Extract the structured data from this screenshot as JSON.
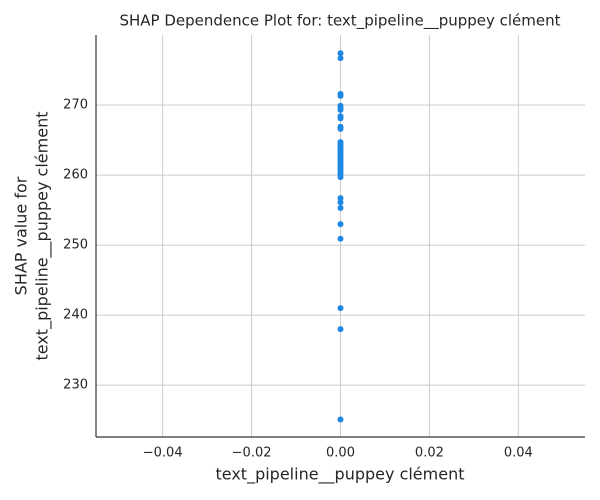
{
  "chart_data": {
    "type": "scatter",
    "title": "SHAP Dependence Plot for: text_pipeline__puppey clément",
    "xlabel": "text_pipeline__puppey clément",
    "ylabel": [
      "SHAP value for",
      "text_pipeline__puppey clément"
    ],
    "color": "#1e88e5",
    "grid": true,
    "xlim": [
      -0.055,
      0.055
    ],
    "ylim": [
      222.6,
      280
    ],
    "xticks": [
      {
        "value": -0.04,
        "label": "−0.04"
      },
      {
        "value": -0.02,
        "label": "−0.02"
      },
      {
        "value": 0,
        "label": "0.00"
      },
      {
        "value": 0.02,
        "label": "0.02"
      },
      {
        "value": 0.04,
        "label": "0.04"
      }
    ],
    "yticks": [
      230,
      240,
      250,
      260,
      270
    ],
    "x": [
      0,
      0,
      0,
      0,
      0,
      0,
      0,
      0,
      0,
      0,
      0,
      0,
      0,
      0,
      0,
      0,
      0,
      0,
      0,
      0,
      0,
      0,
      0,
      0,
      0,
      0,
      0,
      0,
      0,
      0,
      0,
      0,
      0,
      0,
      0,
      0,
      0
    ],
    "values": [
      277.4,
      276.7,
      271.6,
      271.3,
      269.9,
      269.6,
      269.3,
      268.4,
      268.1,
      266.9,
      266.6,
      264.7,
      264.4,
      264.1,
      263.9,
      263.6,
      263.3,
      263.0,
      262.7,
      262.4,
      262.1,
      261.9,
      261.6,
      261.3,
      261.0,
      260.7,
      260.4,
      260.1,
      259.7,
      256.7,
      256.1,
      255.3,
      253.0,
      250.9,
      241.0,
      238.0,
      225.1
    ]
  }
}
